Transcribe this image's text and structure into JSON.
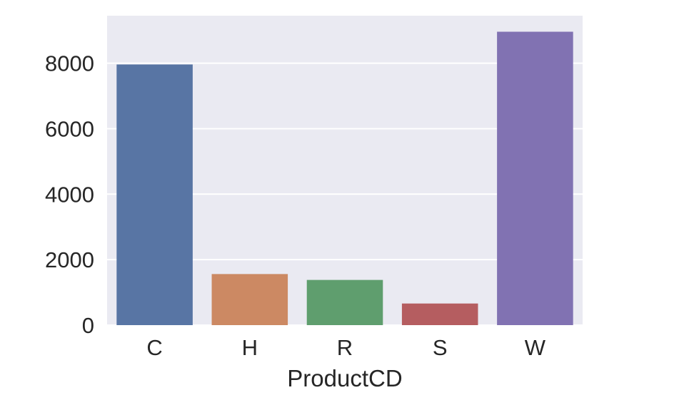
{
  "chart_data": {
    "type": "bar",
    "categories": [
      "C",
      "H",
      "R",
      "S",
      "W"
    ],
    "values": [
      7960,
      1560,
      1380,
      660,
      8960
    ],
    "colors": [
      "#5875a4",
      "#cc8963",
      "#5f9e6e",
      "#b55d60",
      "#8172b2"
    ],
    "title": "",
    "xlabel": "ProductCD",
    "ylabel": "",
    "ylim": [
      0,
      9450
    ],
    "yticks": [
      0,
      2000,
      4000,
      6000,
      8000
    ],
    "grid": true,
    "background": "#eaeaf2",
    "grid_color": "#ffffff"
  }
}
